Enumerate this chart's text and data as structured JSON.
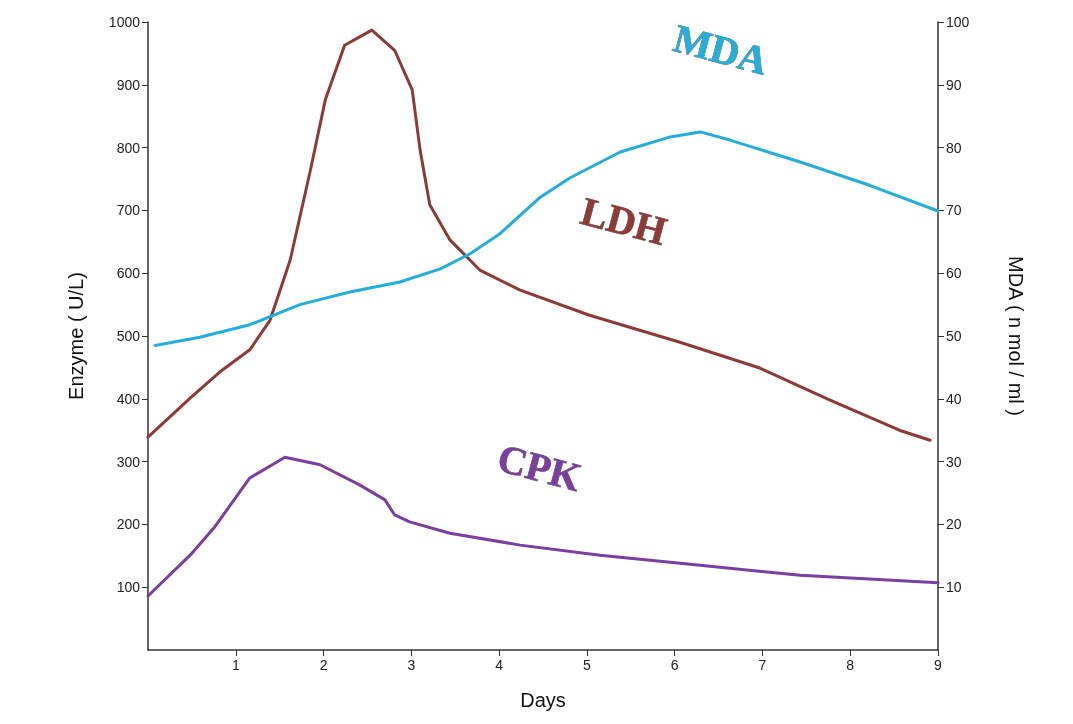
{
  "chart_data": {
    "type": "line",
    "xlabel": "Days",
    "ylabel": "Enzyme ( U/L)",
    "y2label": "MDA ( n mol / ml )",
    "xlim": [
      0,
      9
    ],
    "xticks": [
      1,
      2,
      3,
      4,
      5,
      6,
      7,
      8,
      9
    ],
    "ylim": [
      0,
      1000
    ],
    "yticks": [
      100,
      200,
      300,
      400,
      500,
      600,
      700,
      800,
      900,
      1000
    ],
    "y2lim": [
      0,
      100
    ],
    "y2ticks": [
      10,
      20,
      30,
      40,
      50,
      60,
      70,
      80,
      90,
      100
    ],
    "grid": false,
    "legend": false,
    "marker": "none",
    "line_style": "solid",
    "series": [
      {
        "name": "LDH",
        "color": "#8e3b37",
        "x": [
          0,
          0.48,
          0.82,
          1.16,
          1.39,
          1.62,
          1.85,
          2.02,
          2.24,
          2.55,
          2.81,
          3.01,
          3.1,
          3.21,
          3.44,
          3.78,
          4.24,
          5.03,
          6.06,
          6.97,
          7.77,
          8.56,
          8.91
        ],
        "values": [
          339,
          401,
          443,
          478,
          525,
          621,
          764,
          876,
          963,
          987,
          955,
          892,
          796,
          709,
          653,
          605,
          573,
          533,
          490,
          449,
          398,
          350,
          334
        ]
      },
      {
        "name": "CPK",
        "color": "#7a3fa0",
        "x": [
          0,
          0.48,
          0.76,
          1.16,
          1.56,
          1.96,
          2.41,
          2.7,
          2.81,
          2.98,
          3.44,
          4.24,
          5.15,
          6.29,
          7.43,
          9
        ],
        "values": [
          86,
          151,
          196,
          274,
          307,
          295,
          263,
          239,
          215,
          204,
          186,
          167,
          151,
          135,
          119,
          107
        ]
      },
      {
        "name": "MDA",
        "color": "#25aedb",
        "axis": "y2",
        "x": [
          0.08,
          0.59,
          1.16,
          1.73,
          2.3,
          2.87,
          3.33,
          3.67,
          4.01,
          4.46,
          4.81,
          5.38,
          5.95,
          6.29,
          6.63,
          7.43,
          8.22,
          9
        ],
        "values": [
          48.5,
          49.8,
          51.8,
          55,
          57,
          58.6,
          60.7,
          63.1,
          66.3,
          72,
          75.2,
          79.3,
          81.7,
          82.5,
          81.2,
          77.7,
          74,
          69.9
        ]
      }
    ]
  }
}
